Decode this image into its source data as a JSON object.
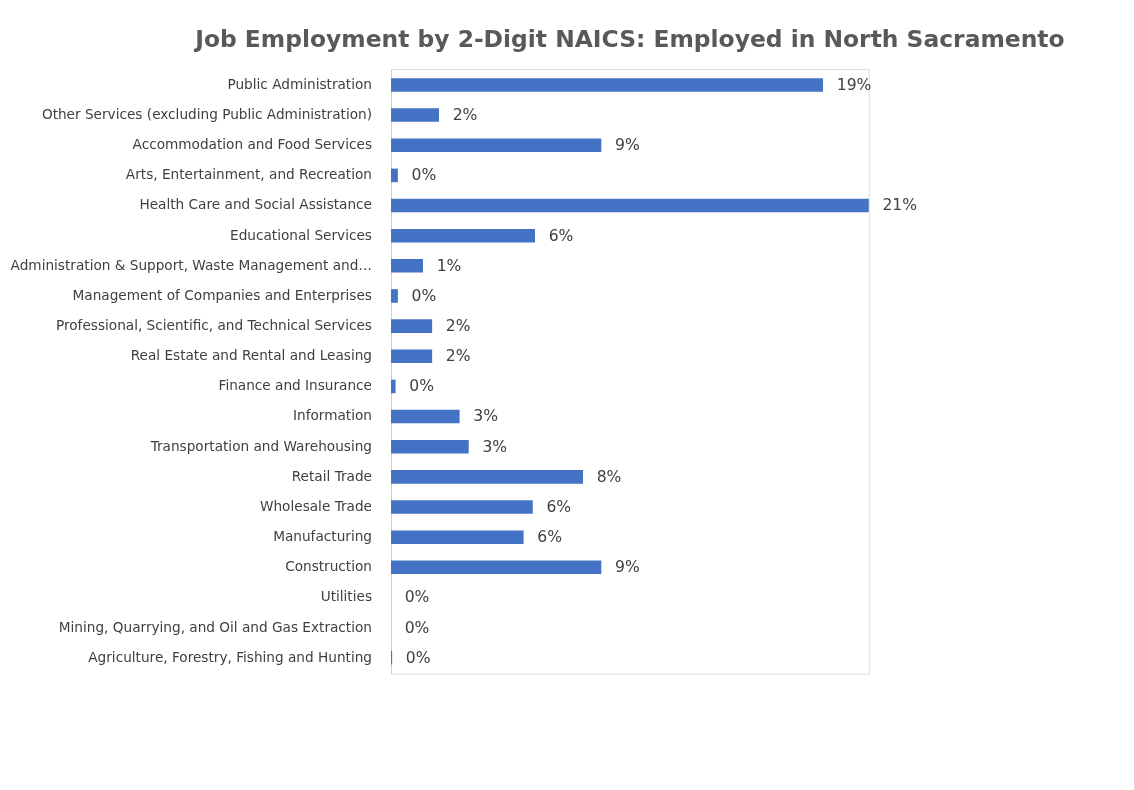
{
  "chart_data": {
    "type": "bar",
    "orientation": "horizontal",
    "title": "Job Employment by 2-Digit NAICS: Employed in North Sacramento",
    "categories": [
      "Public Administration",
      "Other Services (excluding Public Administration)",
      "Accommodation and Food Services",
      "Arts, Entertainment, and Recreation",
      "Health Care and Social Assistance",
      "Educational Services",
      "Administration & Support, Waste Management and…",
      "Management of Companies and Enterprises",
      "Professional, Scientific, and Technical Services",
      "Real Estate and Rental and Leasing",
      "Finance and Insurance",
      "Information",
      "Transportation and Warehousing",
      "Retail Trade",
      "Wholesale Trade",
      "Manufacturing",
      "Construction",
      "Utilities",
      "Mining, Quarrying, and Oil and Gas Extraction",
      "Agriculture, Forestry, Fishing and Hunting"
    ],
    "values": [
      18.9,
      2.1,
      9.2,
      0.3,
      20.9,
      6.3,
      1.4,
      0.3,
      1.8,
      1.8,
      0.2,
      3.0,
      3.4,
      8.4,
      6.2,
      5.8,
      9.2,
      0,
      0,
      0.05
    ],
    "value_labels": [
      "19%",
      "2%",
      "9%",
      "0%",
      "21%",
      "6%",
      "1%",
      "0%",
      "2%",
      "2%",
      "0%",
      "3%",
      "3%",
      "8%",
      "6%",
      "6%",
      "9%",
      "0%",
      "0%",
      "0%"
    ],
    "color": "#4472c4"
  }
}
